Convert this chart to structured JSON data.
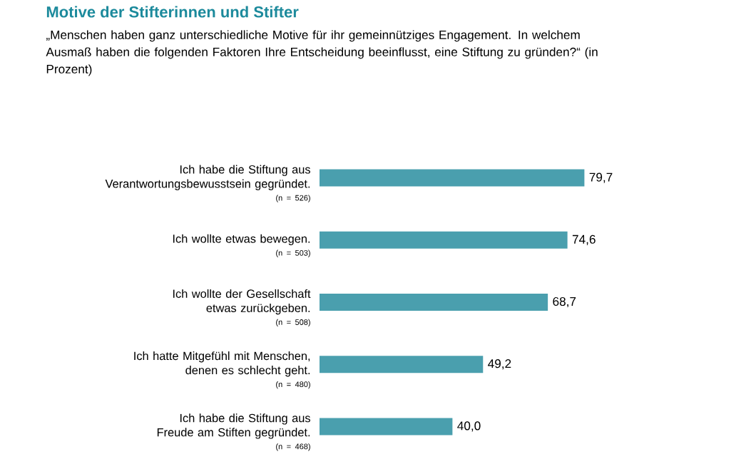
{
  "chart_data": {
    "type": "bar",
    "orientation": "horizontal",
    "title": "Motive der Stifterinnen und Stifter",
    "subtitle": "„Menschen haben ganz unterschiedliche Motive für ihr gemeinnütziges Engagement. In welchem Ausmaß haben die folgenden Faktoren Ihre Entscheidung beeinflusst, eine Stiftung zu gründen?“ (in Prozent)",
    "categories": [
      "Ich habe die Stiftung aus Verantwortungsbewusstsein gegründet.",
      "Ich wollte etwas bewegen.",
      "Ich wollte der Gesellschaft etwas zurückgeben.",
      "Ich hatte Mitgefühl mit Menschen, denen es schlecht geht.",
      "Ich habe die Stiftung aus Freude am Stiften gegründet."
    ],
    "values": [
      79.7,
      74.6,
      68.7,
      49.2,
      40.0
    ],
    "value_labels": [
      "79,7",
      "74,6",
      "68,7",
      "49,2",
      "40,0"
    ],
    "color": "#4a9fae",
    "annotations": [
      "(n = 526)",
      "(n = 503)",
      "(n = 508)",
      "(n = 480)",
      "(n = 468)"
    ]
  }
}
